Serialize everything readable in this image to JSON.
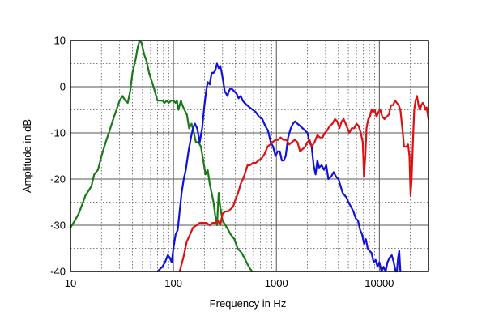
{
  "chart_data": {
    "type": "line",
    "title": "",
    "xlabel": "Frequency in Hz",
    "ylabel": "Amplitude in dB",
    "x_scale": "log",
    "xlim": [
      10,
      30000
    ],
    "ylim": [
      -40,
      10
    ],
    "x_ticks": [
      {
        "value": 10,
        "label": "10"
      },
      {
        "value": 100,
        "label": "100"
      },
      {
        "value": 1000,
        "label": "1000"
      },
      {
        "value": 10000,
        "label": "10000"
      }
    ],
    "y_ticks": [
      {
        "value": 10,
        "label": "10"
      },
      {
        "value": 0,
        "label": "0"
      },
      {
        "value": -10,
        "label": "-10"
      },
      {
        "value": -20,
        "label": "-20"
      },
      {
        "value": -30,
        "label": "-30"
      },
      {
        "value": -40,
        "label": "-40"
      }
    ],
    "grid": true,
    "legend": "none",
    "series": [
      {
        "color": "#1a7a1a",
        "points": [
          [
            10,
            -30.5
          ],
          [
            11,
            -29
          ],
          [
            12,
            -27.5
          ],
          [
            13,
            -25.5
          ],
          [
            14,
            -23.5
          ],
          [
            15,
            -22.5
          ],
          [
            16,
            -21.5
          ],
          [
            17,
            -19
          ],
          [
            18.5,
            -18
          ],
          [
            20,
            -15
          ],
          [
            22,
            -12
          ],
          [
            24,
            -9.5
          ],
          [
            26,
            -7
          ],
          [
            28,
            -5
          ],
          [
            30,
            -3
          ],
          [
            32,
            -2
          ],
          [
            34,
            -3
          ],
          [
            36,
            -3.5
          ],
          [
            38,
            -1
          ],
          [
            40,
            3
          ],
          [
            43,
            6
          ],
          [
            45,
            8.5
          ],
          [
            47,
            10
          ],
          [
            49,
            9.5
          ],
          [
            52,
            7
          ],
          [
            55,
            5.5
          ],
          [
            58,
            3
          ],
          [
            62,
            1
          ],
          [
            66,
            -1
          ],
          [
            70,
            -3
          ],
          [
            74,
            -3
          ],
          [
            78,
            -3
          ],
          [
            82,
            -3.5
          ],
          [
            86,
            -3
          ],
          [
            90,
            -3.5
          ],
          [
            95,
            -3
          ],
          [
            100,
            -3
          ],
          [
            105,
            -3.5
          ],
          [
            108,
            -3
          ],
          [
            112,
            -5
          ],
          [
            118,
            -3
          ],
          [
            122,
            -4
          ],
          [
            128,
            -5
          ],
          [
            135,
            -6
          ],
          [
            142,
            -9
          ],
          [
            150,
            -8
          ],
          [
            158,
            -10
          ],
          [
            165,
            -12
          ],
          [
            175,
            -12
          ],
          [
            185,
            -13
          ],
          [
            195,
            -16
          ],
          [
            205,
            -19
          ],
          [
            215,
            -18
          ],
          [
            225,
            -21
          ],
          [
            235,
            -23
          ],
          [
            245,
            -25
          ],
          [
            255,
            -28
          ],
          [
            265,
            -30
          ],
          [
            275,
            -23
          ],
          [
            285,
            -26
          ],
          [
            300,
            -29
          ],
          [
            320,
            -30
          ],
          [
            340,
            -31
          ],
          [
            360,
            -32
          ],
          [
            390,
            -33
          ],
          [
            420,
            -35
          ],
          [
            460,
            -36
          ],
          [
            500,
            -37.5
          ],
          [
            540,
            -39
          ],
          [
            580,
            -40
          ]
        ]
      },
      {
        "color": "#1212dd",
        "points": [
          [
            70,
            -40
          ],
          [
            78,
            -39
          ],
          [
            83,
            -38
          ],
          [
            88,
            -36.5
          ],
          [
            92,
            -37
          ],
          [
            96,
            -38
          ],
          [
            100,
            -35
          ],
          [
            105,
            -32
          ],
          [
            110,
            -31
          ],
          [
            115,
            -27
          ],
          [
            120,
            -23
          ],
          [
            126,
            -20
          ],
          [
            132,
            -18
          ],
          [
            140,
            -14
          ],
          [
            148,
            -11
          ],
          [
            155,
            -9
          ],
          [
            162,
            -8
          ],
          [
            170,
            -9
          ],
          [
            180,
            -12
          ],
          [
            190,
            -9
          ],
          [
            200,
            -4
          ],
          [
            208,
            -1
          ],
          [
            215,
            1
          ],
          [
            225,
            0.5
          ],
          [
            235,
            3
          ],
          [
            245,
            3
          ],
          [
            255,
            3.5
          ],
          [
            265,
            5
          ],
          [
            275,
            4
          ],
          [
            285,
            4.5
          ],
          [
            295,
            3
          ],
          [
            305,
            1
          ],
          [
            315,
            -1
          ],
          [
            325,
            -1.5
          ],
          [
            335,
            -2
          ],
          [
            345,
            -1
          ],
          [
            355,
            -0.5
          ],
          [
            370,
            -0.5
          ],
          [
            390,
            -1
          ],
          [
            410,
            -1.5
          ],
          [
            430,
            -2.5
          ],
          [
            450,
            -2
          ],
          [
            470,
            -3
          ],
          [
            490,
            -3.5
          ],
          [
            520,
            -4
          ],
          [
            550,
            -4.5
          ],
          [
            590,
            -5
          ],
          [
            630,
            -5.5
          ],
          [
            680,
            -6.5
          ],
          [
            730,
            -7
          ],
          [
            780,
            -8.5
          ],
          [
            830,
            -9.5
          ],
          [
            880,
            -12
          ],
          [
            930,
            -13
          ],
          [
            980,
            -15
          ],
          [
            1030,
            -14
          ],
          [
            1080,
            -14
          ],
          [
            1130,
            -16
          ],
          [
            1180,
            -16
          ],
          [
            1230,
            -15
          ],
          [
            1300,
            -11
          ],
          [
            1380,
            -9
          ],
          [
            1450,
            -8
          ],
          [
            1520,
            -7.5
          ],
          [
            1600,
            -8
          ],
          [
            1700,
            -8.5
          ],
          [
            1800,
            -9
          ],
          [
            1900,
            -9.5
          ],
          [
            2000,
            -10
          ],
          [
            2100,
            -12
          ],
          [
            2200,
            -13
          ],
          [
            2300,
            -17
          ],
          [
            2400,
            -19
          ],
          [
            2500,
            -16
          ],
          [
            2600,
            -17.5
          ],
          [
            2750,
            -17
          ],
          [
            2900,
            -18
          ],
          [
            3050,
            -17
          ],
          [
            3200,
            -20
          ],
          [
            3400,
            -19.5
          ],
          [
            3600,
            -18.5
          ],
          [
            3800,
            -19.5
          ],
          [
            4000,
            -20
          ],
          [
            4200,
            -21.5
          ],
          [
            4400,
            -23
          ],
          [
            4600,
            -23.5
          ],
          [
            4800,
            -24
          ],
          [
            5000,
            -25
          ],
          [
            5300,
            -26
          ],
          [
            5600,
            -27
          ],
          [
            5900,
            -28.5
          ],
          [
            6200,
            -29
          ],
          [
            6500,
            -31
          ],
          [
            6800,
            -32
          ],
          [
            7100,
            -34
          ],
          [
            7400,
            -33
          ],
          [
            7700,
            -35
          ],
          [
            8000,
            -35.5
          ],
          [
            8400,
            -36
          ],
          [
            8800,
            -38
          ],
          [
            9200,
            -37.5
          ],
          [
            9600,
            -39
          ],
          [
            10000,
            -38
          ],
          [
            10500,
            -40
          ],
          [
            11000,
            -39
          ],
          [
            11500,
            -40
          ],
          [
            12000,
            -38
          ],
          [
            12600,
            -37
          ],
          [
            13200,
            -36.5
          ],
          [
            13800,
            -38
          ],
          [
            14400,
            -40
          ],
          [
            14800,
            -40
          ],
          [
            15200,
            -37
          ],
          [
            15600,
            -35.5
          ],
          [
            16000,
            -40
          ]
        ]
      },
      {
        "color": "#dd1111",
        "points": [
          [
            115,
            -40
          ],
          [
            125,
            -37
          ],
          [
            135,
            -33.5
          ],
          [
            145,
            -32
          ],
          [
            155,
            -30.5
          ],
          [
            168,
            -30
          ],
          [
            180,
            -29.5
          ],
          [
            195,
            -29.5
          ],
          [
            210,
            -29.5
          ],
          [
            225,
            -30
          ],
          [
            240,
            -29.5
          ],
          [
            255,
            -29.5
          ],
          [
            270,
            -29
          ],
          [
            285,
            -30
          ],
          [
            300,
            -27.5
          ],
          [
            320,
            -27
          ],
          [
            340,
            -27
          ],
          [
            360,
            -26.5
          ],
          [
            380,
            -26
          ],
          [
            400,
            -24.5
          ],
          [
            425,
            -23
          ],
          [
            450,
            -21
          ],
          [
            475,
            -20
          ],
          [
            500,
            -18.5
          ],
          [
            525,
            -17
          ],
          [
            555,
            -17
          ],
          [
            590,
            -16.5
          ],
          [
            630,
            -16.5
          ],
          [
            670,
            -16
          ],
          [
            720,
            -15.5
          ],
          [
            770,
            -14.5
          ],
          [
            820,
            -13
          ],
          [
            870,
            -12.5
          ],
          [
            920,
            -12
          ],
          [
            980,
            -11.5
          ],
          [
            1040,
            -11.5
          ],
          [
            1100,
            -11
          ],
          [
            1170,
            -11.5
          ],
          [
            1250,
            -11.5
          ],
          [
            1330,
            -12.5
          ],
          [
            1420,
            -12
          ],
          [
            1510,
            -11.5
          ],
          [
            1600,
            -12
          ],
          [
            1700,
            -14
          ],
          [
            1800,
            -13.5
          ],
          [
            1900,
            -13
          ],
          [
            2000,
            -12
          ],
          [
            2100,
            -11.5
          ],
          [
            2200,
            -13
          ],
          [
            2350,
            -12
          ],
          [
            2500,
            -10.5
          ],
          [
            2650,
            -11
          ],
          [
            2800,
            -11
          ],
          [
            2950,
            -10
          ],
          [
            3100,
            -9.5
          ],
          [
            3300,
            -8.5
          ],
          [
            3500,
            -8
          ],
          [
            3700,
            -7
          ],
          [
            3900,
            -7.5
          ],
          [
            4100,
            -9
          ],
          [
            4300,
            -7.5
          ],
          [
            4500,
            -7
          ],
          [
            4700,
            -8
          ],
          [
            4900,
            -9
          ],
          [
            5100,
            -10
          ],
          [
            5400,
            -9
          ],
          [
            5700,
            -9
          ],
          [
            6000,
            -8
          ],
          [
            6300,
            -8.5
          ],
          [
            6600,
            -10
          ],
          [
            6900,
            -12
          ],
          [
            7100,
            -19.5
          ],
          [
            7300,
            -15
          ],
          [
            7500,
            -9
          ],
          [
            7800,
            -7
          ],
          [
            8100,
            -6.5
          ],
          [
            8400,
            -5
          ],
          [
            8700,
            -5.5
          ],
          [
            9000,
            -5
          ],
          [
            9400,
            -6.5
          ],
          [
            9800,
            -5.5
          ],
          [
            10200,
            -5
          ],
          [
            10700,
            -6.5
          ],
          [
            11200,
            -7
          ],
          [
            11800,
            -6.5
          ],
          [
            12400,
            -6
          ],
          [
            13000,
            -4
          ],
          [
            13600,
            -4
          ],
          [
            14200,
            -3
          ],
          [
            14800,
            -3.5
          ],
          [
            15400,
            -4
          ],
          [
            16000,
            -5
          ],
          [
            16700,
            -9
          ],
          [
            17400,
            -13
          ],
          [
            18200,
            -13
          ],
          [
            19000,
            -12.5
          ],
          [
            19600,
            -15
          ],
          [
            20100,
            -23.5
          ],
          [
            20600,
            -20
          ],
          [
            21200,
            -12
          ],
          [
            21800,
            -5
          ],
          [
            22500,
            -3
          ],
          [
            23200,
            -2
          ],
          [
            24000,
            -4
          ],
          [
            24800,
            -5
          ],
          [
            25600,
            -4
          ],
          [
            26400,
            -3.5
          ],
          [
            27200,
            -4
          ],
          [
            28000,
            -5
          ],
          [
            28800,
            -4.5
          ],
          [
            29500,
            -6
          ],
          [
            30000,
            -7
          ]
        ]
      }
    ]
  }
}
